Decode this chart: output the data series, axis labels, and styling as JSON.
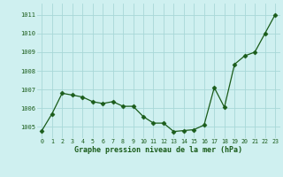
{
  "x": [
    0,
    1,
    2,
    3,
    4,
    5,
    6,
    7,
    8,
    9,
    10,
    11,
    12,
    13,
    14,
    15,
    16,
    17,
    18,
    19,
    20,
    21,
    22,
    23
  ],
  "y": [
    1004.8,
    1005.7,
    1006.8,
    1006.7,
    1006.6,
    1006.35,
    1006.25,
    1006.35,
    1006.1,
    1006.1,
    1005.55,
    1005.2,
    1005.2,
    1004.75,
    1004.8,
    1004.85,
    1005.1,
    1007.1,
    1006.05,
    1008.35,
    1008.8,
    1009.0,
    1010.0,
    1011.0
  ],
  "line_color": "#1a5c1a",
  "marker": "D",
  "marker_size": 2.5,
  "bg_color": "#cff0f0",
  "grid_color": "#a8d8d8",
  "xlabel": "Graphe pression niveau de la mer (hPa)",
  "xlabel_color": "#1a5c1a",
  "tick_color": "#1a5c1a",
  "ylim": [
    1004.4,
    1011.6
  ],
  "yticks": [
    1005,
    1006,
    1007,
    1008,
    1009,
    1010,
    1011
  ],
  "xlim": [
    -0.5,
    23.5
  ],
  "xticks": [
    0,
    1,
    2,
    3,
    4,
    5,
    6,
    7,
    8,
    9,
    10,
    11,
    12,
    13,
    14,
    15,
    16,
    17,
    18,
    19,
    20,
    21,
    22,
    23
  ]
}
